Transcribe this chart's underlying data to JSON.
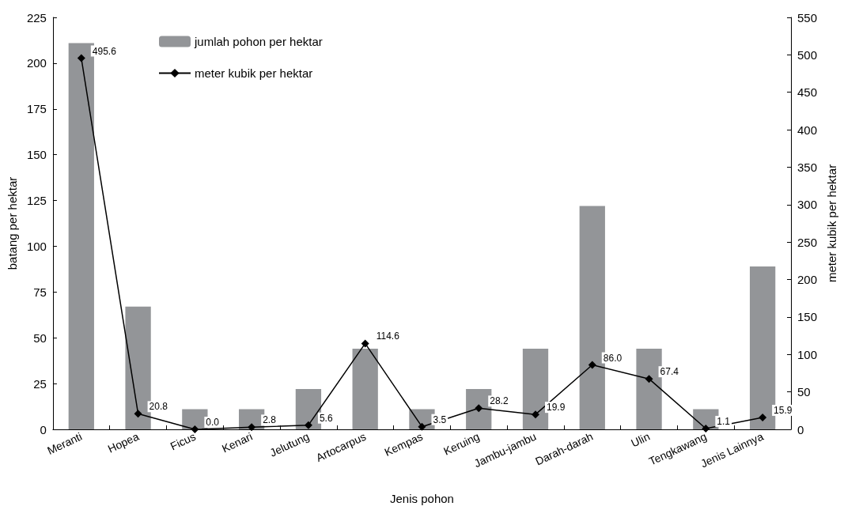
{
  "chart_data": {
    "type": "bar",
    "xlabel": "Jenis pohon",
    "ylabel": "batang per hektar",
    "y2label": "meter kubik per hektar",
    "categories": [
      "Meranti",
      "Hopea",
      "Ficus",
      "Kenari",
      "Jelutung",
      "Artocarpus",
      "Kempas",
      "Keruing",
      "Jambu-jambu",
      "Darah-darah",
      "Ulin",
      "Tengkawang",
      "Jenis Lainnya"
    ],
    "series": [
      {
        "name": "jumlah pohon per hektar",
        "color": "#939598",
        "values": [
          211,
          67,
          11,
          11,
          22,
          44,
          11,
          22,
          44,
          122,
          44,
          11,
          89
        ]
      },
      {
        "name": "meter kubik per hektar",
        "type": "line",
        "axis": "y2",
        "color": "#000000",
        "marker": "diamond",
        "values": [
          495.6,
          20.8,
          0,
          2.8,
          5.6,
          114.6,
          3.5,
          28.2,
          19.9,
          86,
          67.4,
          1.1,
          15.9
        ],
        "value_labels": [
          "495.6",
          "20.8",
          "0.0",
          "2.8",
          "5.6",
          "114.6",
          "3.5",
          "28.2",
          "19.9",
          "86.0",
          "67.4",
          "1.1",
          "15.9"
        ]
      }
    ],
    "ylim": [
      0,
      225
    ],
    "yticks": [
      0,
      25,
      50,
      75,
      100,
      125,
      150,
      175,
      200,
      225
    ],
    "y2lim": [
      0,
      550
    ],
    "y2ticks": [
      0,
      50,
      100,
      150,
      200,
      250,
      300,
      350,
      400,
      450,
      500,
      550
    ],
    "grid": false,
    "legend": "top left"
  }
}
